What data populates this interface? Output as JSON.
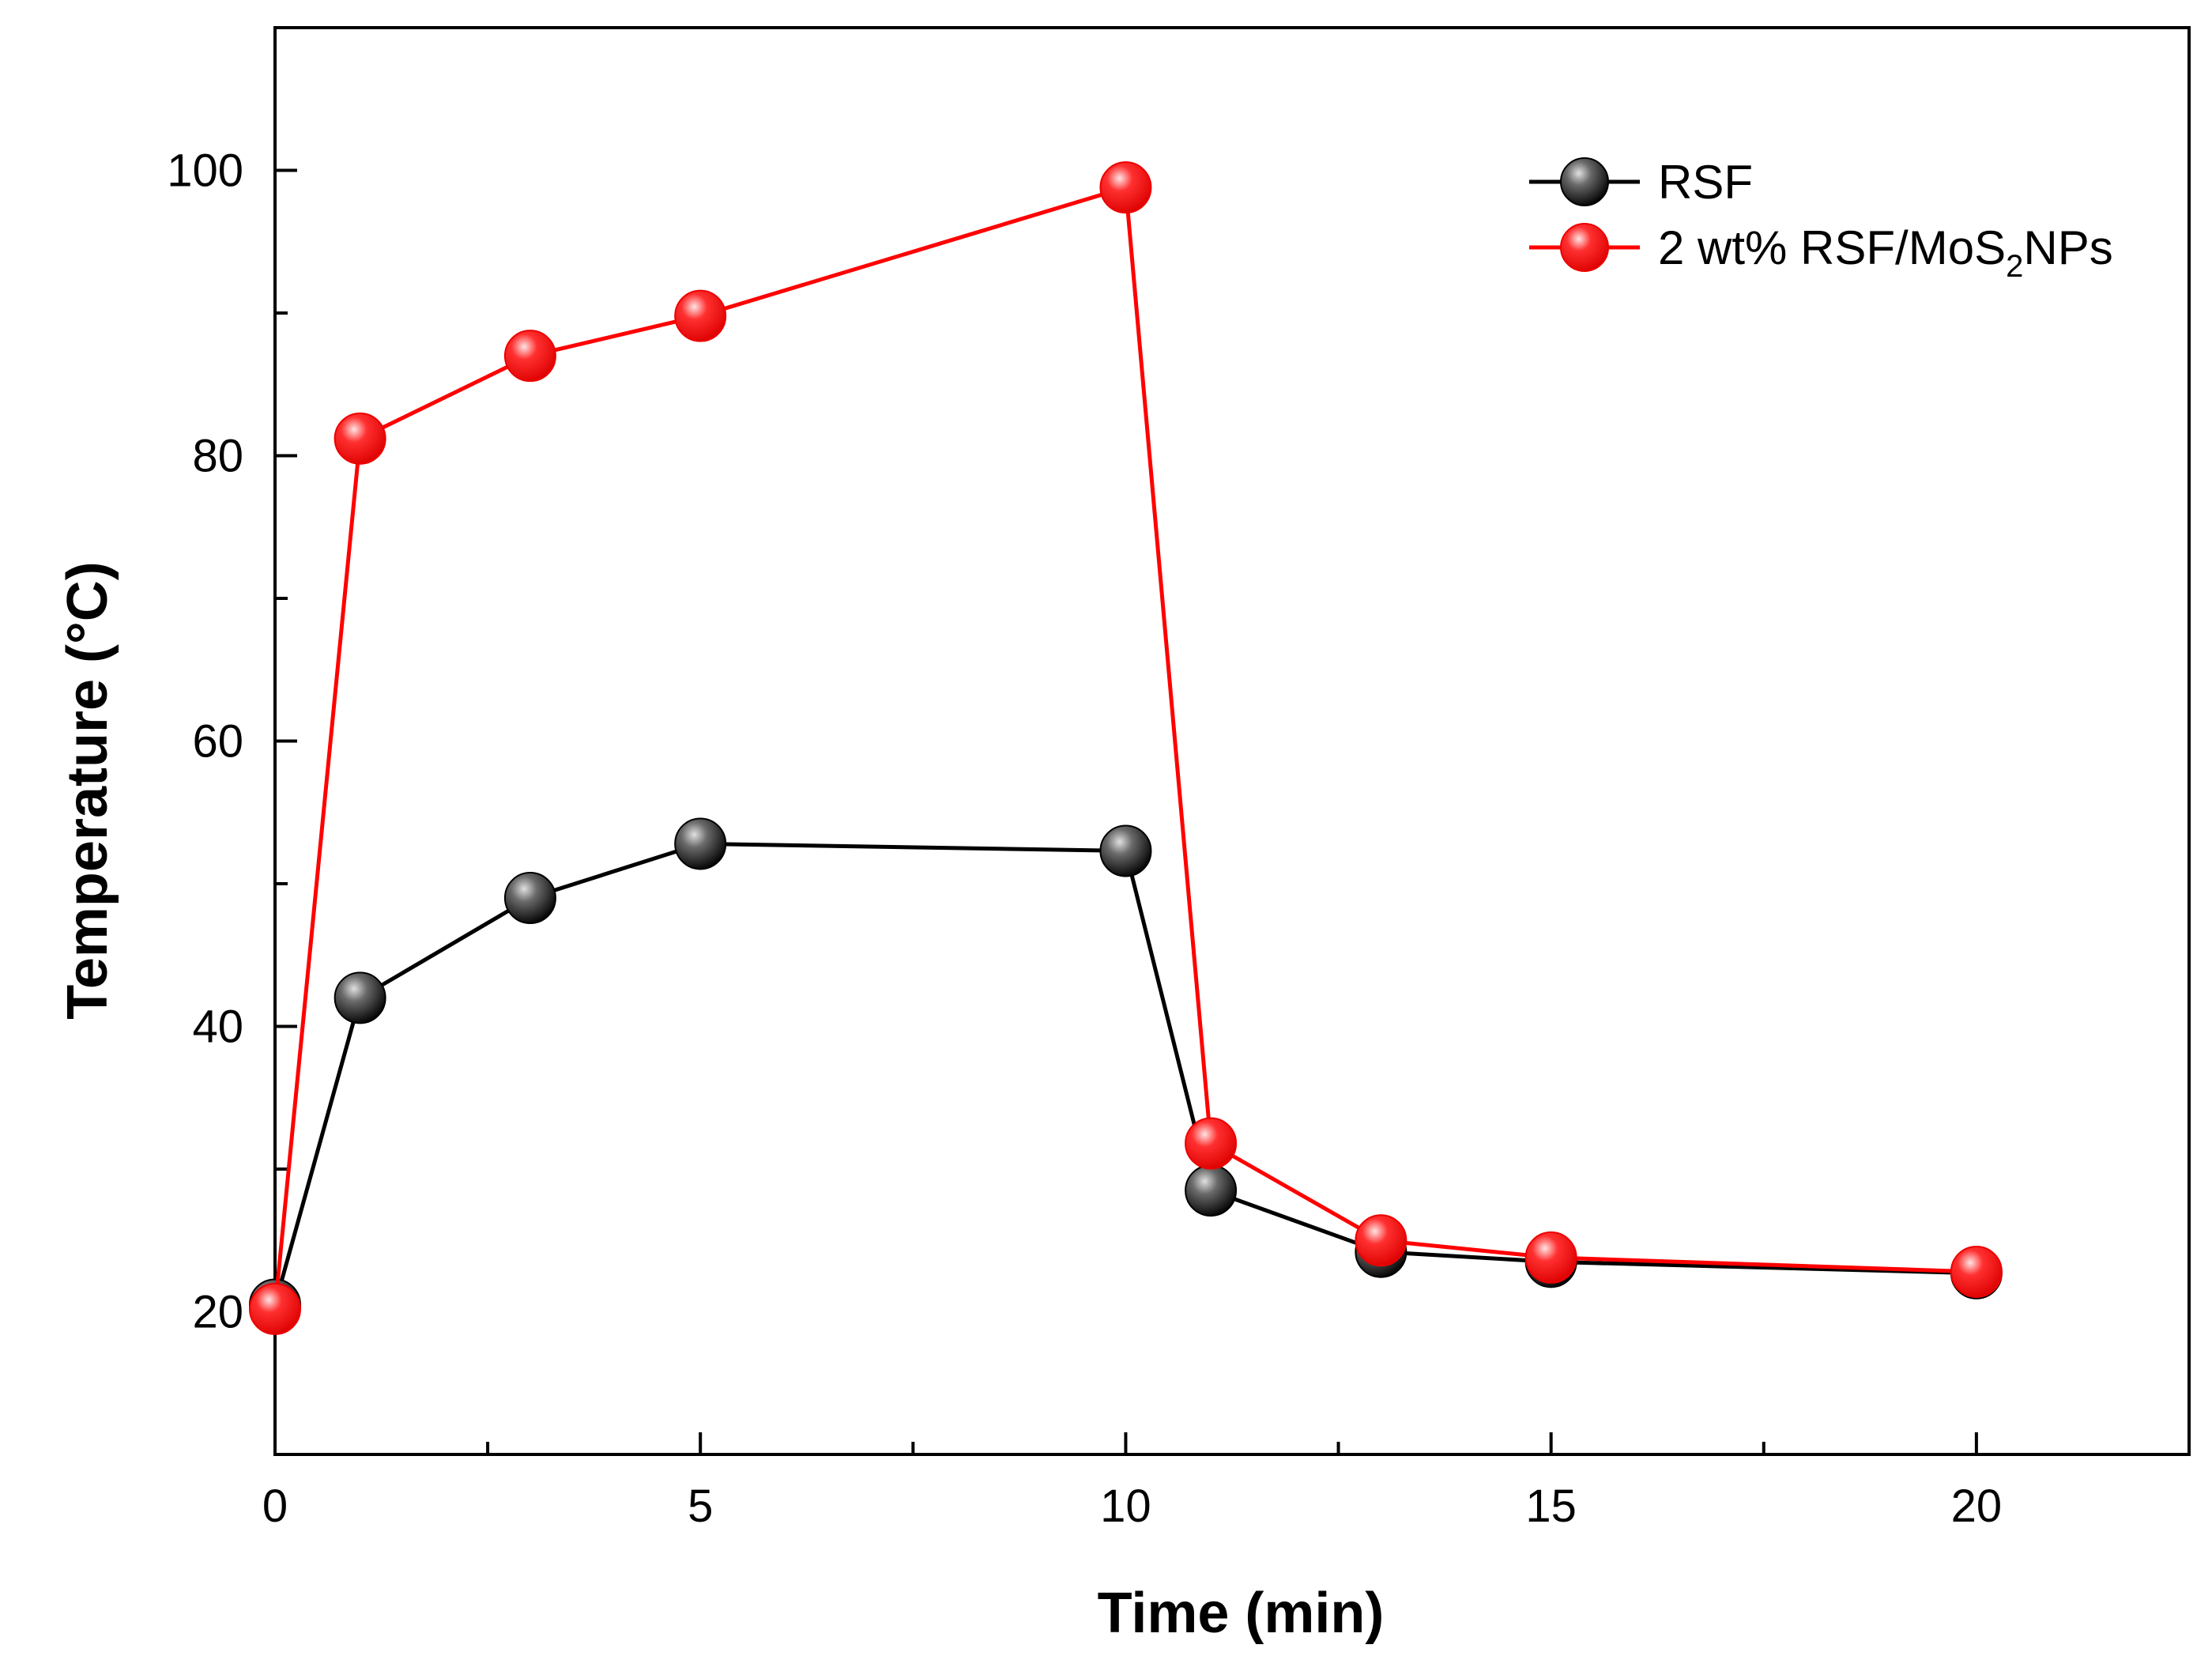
{
  "chart_data": {
    "type": "line",
    "title": "",
    "xlabel": "Time (min)",
    "ylabel": "Temperature (°C)",
    "xlim": [
      0,
      22.5
    ],
    "ylim": [
      10,
      110
    ],
    "x_ticks": [
      {
        "value": 0,
        "label": "0"
      },
      {
        "value": 5,
        "label": "5"
      },
      {
        "value": 10,
        "label": "10"
      },
      {
        "value": 15,
        "label": "15"
      },
      {
        "value": 20,
        "label": "20"
      }
    ],
    "y_ticks": [
      {
        "value": 20,
        "label": "20"
      },
      {
        "value": 40,
        "label": "40"
      },
      {
        "value": 60,
        "label": "60"
      },
      {
        "value": 80,
        "label": "80"
      },
      {
        "value": 100,
        "label": "100"
      }
    ],
    "legend_position": "top-right",
    "series": [
      {
        "name": "RSF",
        "legend_label": "RSF",
        "color": "#000000",
        "x": [
          0,
          1,
          3,
          5,
          10,
          11,
          13,
          15,
          20
        ],
        "values": [
          20.5,
          42,
          49,
          52.8,
          52.3,
          28.5,
          24.2,
          23.5,
          22.7
        ]
      },
      {
        "name": "2 wt% RSF/MoS2NPs",
        "legend_label": {
          "main": "2 wt% RSF/MoS",
          "sub": "2",
          "tail": "NPs"
        },
        "color": "#ff0000",
        "x": [
          0,
          1,
          3,
          5,
          10,
          11,
          13,
          15,
          20
        ],
        "values": [
          20.2,
          81.2,
          87,
          89.8,
          98.8,
          31.8,
          25,
          23.8,
          22.8
        ]
      }
    ]
  }
}
